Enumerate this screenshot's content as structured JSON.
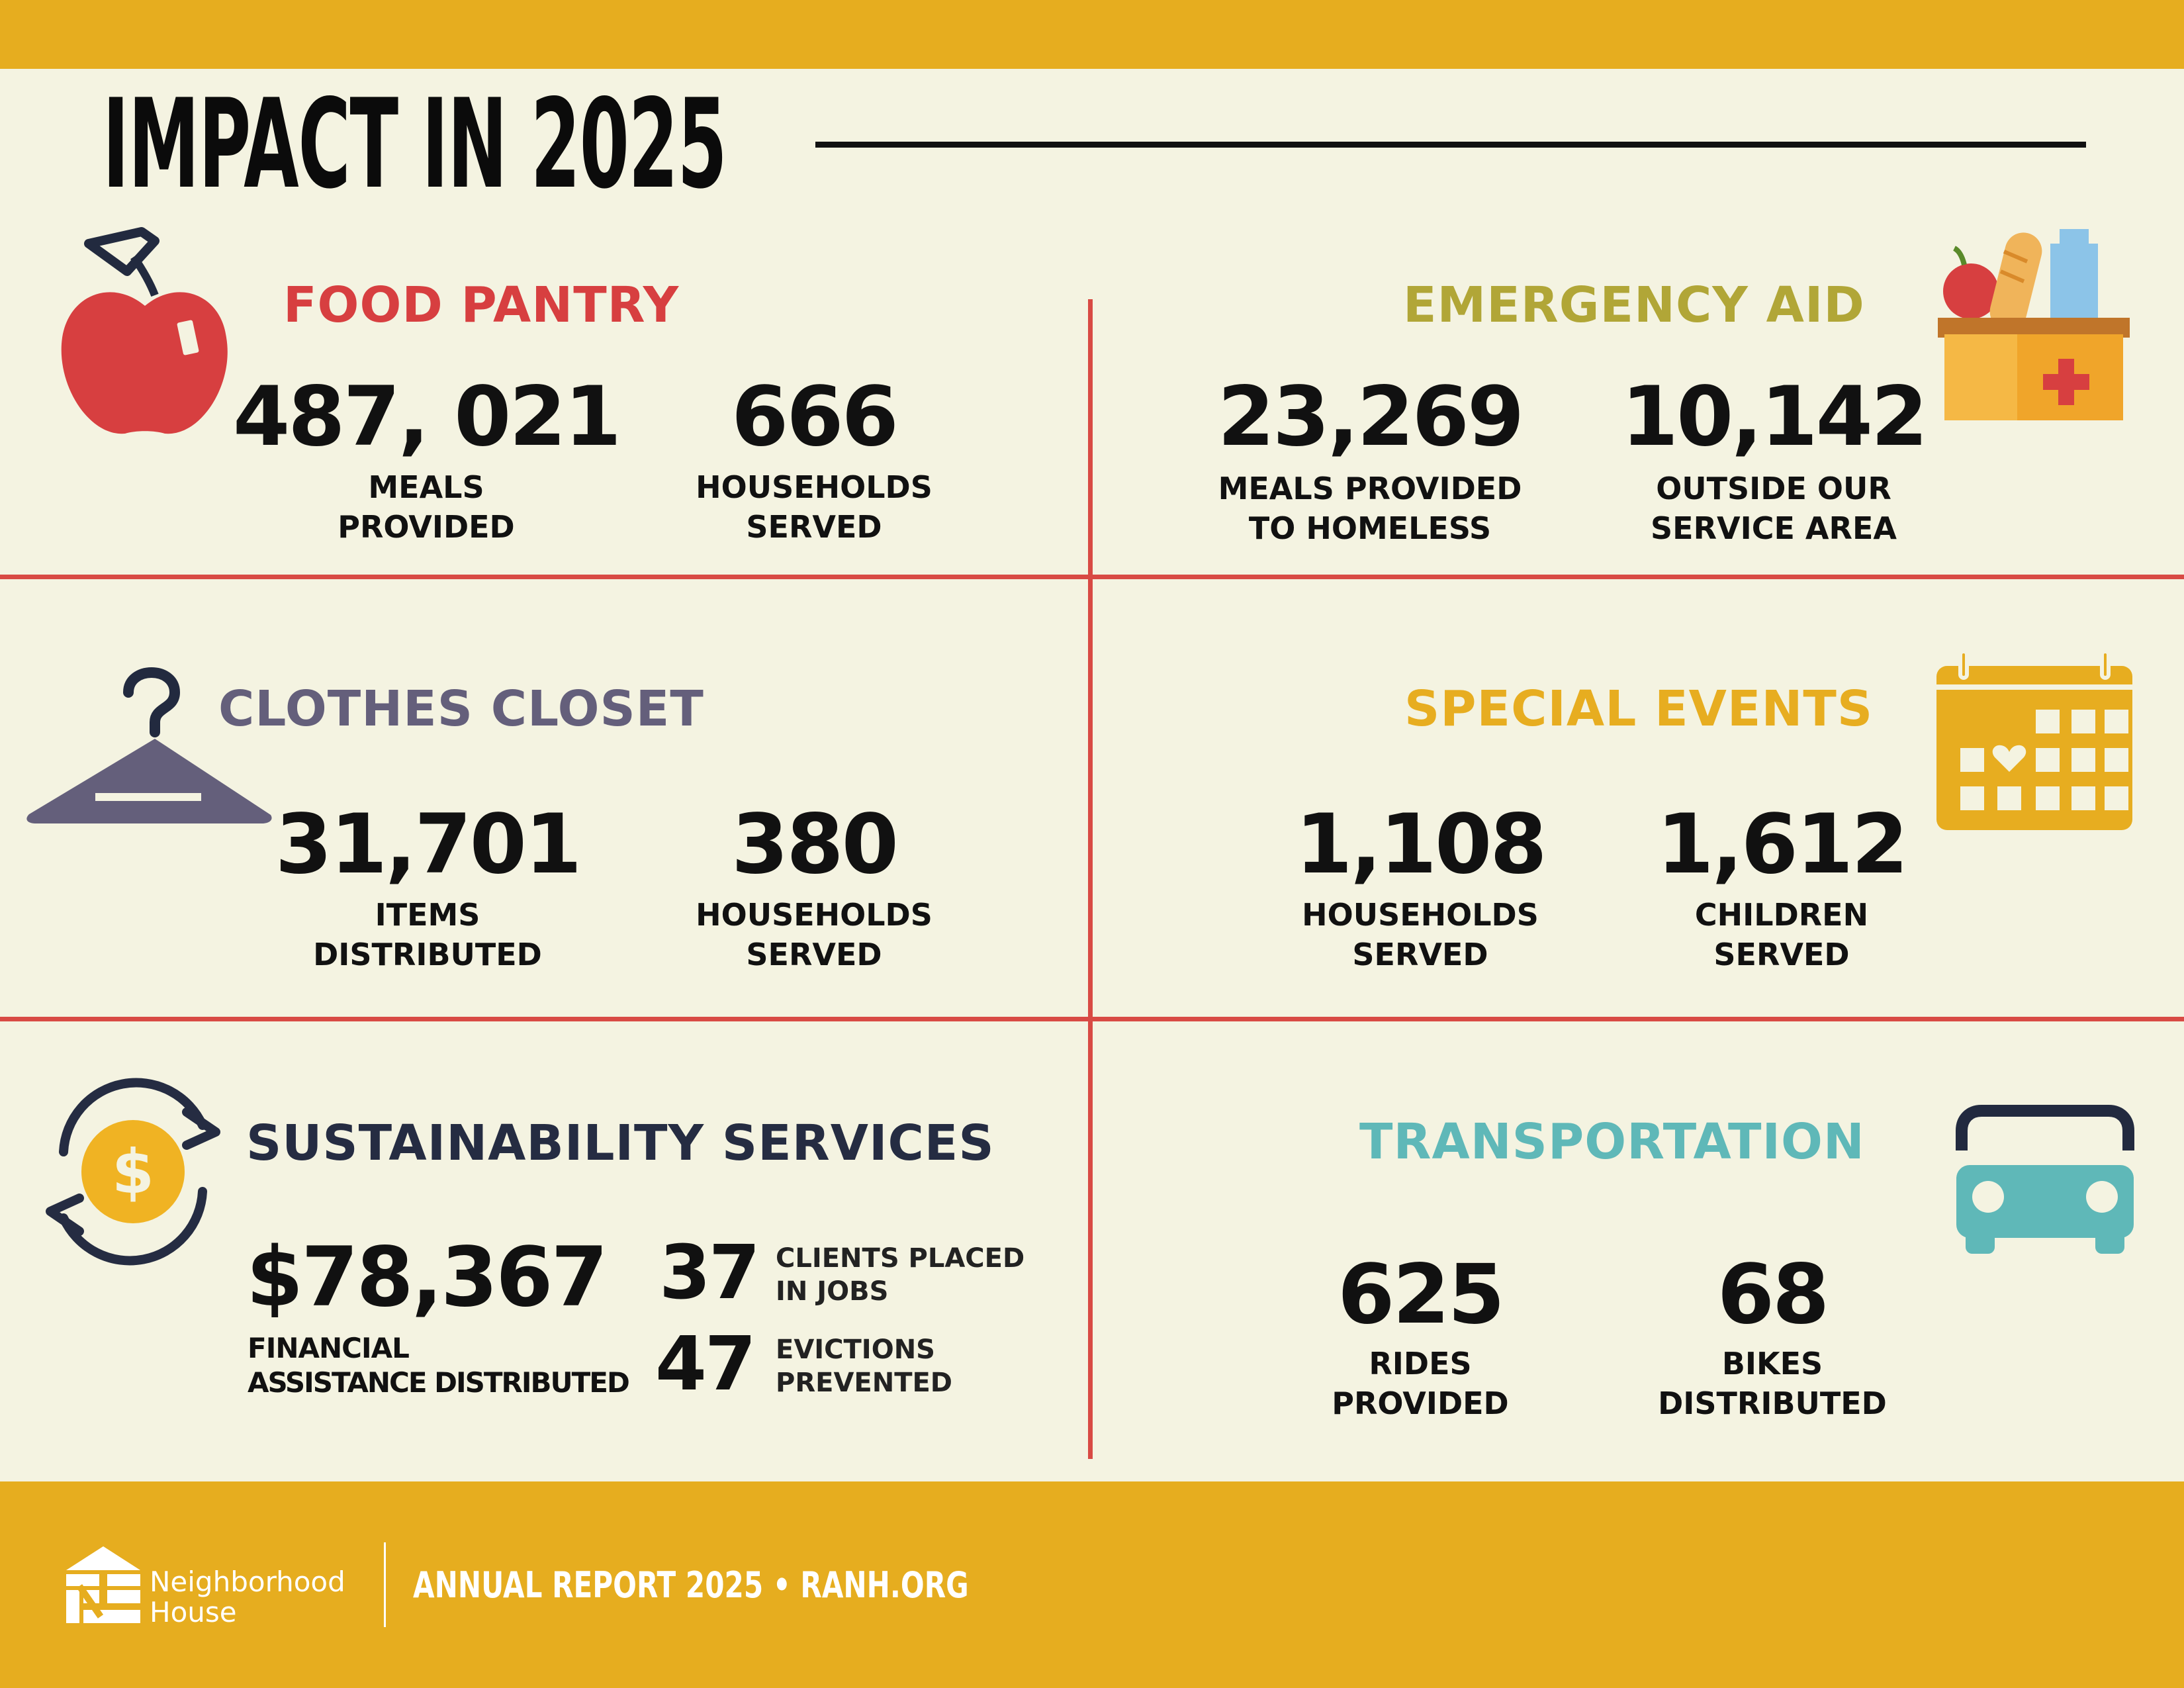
{
  "title": "IMPACT IN 2025",
  "colors": {
    "band": "#e6ad1f",
    "background": "#f4f3e1",
    "divider": "#d84a44",
    "food": "#d73f40",
    "emergency": "#b1a637",
    "clothes": "#645f7b",
    "events": "#e7ad20",
    "sustain": "#252c42",
    "transport": "#5fb8b8"
  },
  "food_pantry": {
    "heading": "FOOD PANTRY",
    "icon": "apple-icon",
    "stats": [
      {
        "value": "487, 021",
        "label1": "MEALS",
        "label2": "PROVIDED"
      },
      {
        "value": "666",
        "label1": "HOUSEHOLDS",
        "label2": "SERVED"
      }
    ]
  },
  "emergency_aid": {
    "heading": "EMERGENCY AID",
    "icon": "aid-box-icon",
    "stats": [
      {
        "value": "23,269",
        "label1": "MEALS PROVIDED",
        "label2": "TO HOMELESS"
      },
      {
        "value": "10,142",
        "label1": "OUTSIDE OUR",
        "label2": "SERVICE AREA"
      }
    ]
  },
  "clothes_closet": {
    "heading": "CLOTHES CLOSET",
    "icon": "hanger-icon",
    "stats": [
      {
        "value": "31,701",
        "label1": "ITEMS",
        "label2": "DISTRIBUTED"
      },
      {
        "value": "380",
        "label1": "HOUSEHOLDS",
        "label2": "SERVED"
      }
    ]
  },
  "special_events": {
    "heading": "SPECIAL EVENTS",
    "icon": "calendar-icon",
    "stats": [
      {
        "value": "1,108",
        "label1": "HOUSEHOLDS",
        "label2": "SERVED"
      },
      {
        "value": "1,612",
        "label1": "CHILDREN",
        "label2": "SERVED"
      }
    ]
  },
  "sustainability": {
    "heading": "SUSTAINABILITY SERVICES",
    "icon": "dollar-cycle-icon",
    "main": {
      "value": "$78,367",
      "label1": "FINANCIAL",
      "label2": "ASSISTANCE DISTRIBUTED"
    },
    "side": [
      {
        "value": "37",
        "label1": "CLIENTS PLACED",
        "label2": "IN JOBS"
      },
      {
        "value": "47",
        "label1": "EVICTIONS",
        "label2": "PREVENTED"
      }
    ]
  },
  "transportation": {
    "heading": "TRANSPORTATION",
    "icon": "car-icon",
    "stats": [
      {
        "value": "625",
        "label1": "RIDES",
        "label2": "PROVIDED"
      },
      {
        "value": "68",
        "label1": "BIKES",
        "label2": "DISTRIBUTED"
      }
    ]
  },
  "footer": {
    "logo_line1": "Neighborhood",
    "logo_line2": "House",
    "report": "ANNUAL REPORT 2025 • RANH.ORG"
  }
}
